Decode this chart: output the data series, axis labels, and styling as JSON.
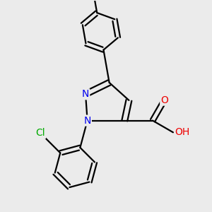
{
  "background_color": "#ebebeb",
  "bond_color": "#000000",
  "bond_width": 1.6,
  "atom_colors": {
    "N": "#0000ee",
    "O": "#ee0000",
    "Cl": "#00aa00",
    "H": "#708090",
    "C": "#000000"
  },
  "font_size_atom": 10,
  "font_size_methyl": 9,
  "font_size_H": 9
}
